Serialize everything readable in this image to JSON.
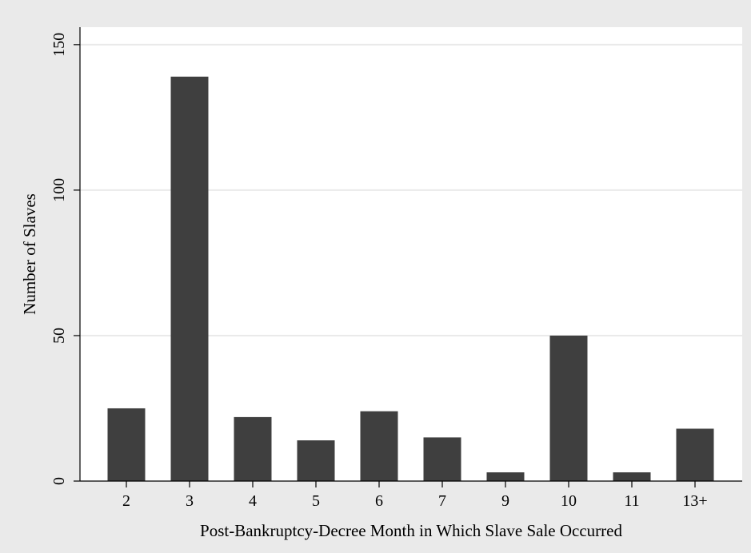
{
  "chart_data": {
    "type": "bar",
    "title": "",
    "xlabel": "Post-Bankruptcy-Decree Month in Which Slave Sale Occurred",
    "ylabel": "Number of Slaves",
    "categories": [
      "2",
      "3",
      "4",
      "5",
      "6",
      "7",
      "9",
      "10",
      "11",
      "13+"
    ],
    "values": [
      25,
      139,
      22,
      14,
      24,
      15,
      3,
      50,
      3,
      18
    ],
    "ylim": [
      0,
      156
    ],
    "yticks": [
      0,
      50,
      100,
      150
    ],
    "ytick_labels": [
      "0",
      "50",
      "100",
      "150"
    ],
    "grid": true,
    "legend": "none",
    "colors": {
      "bar": "#3f3f3f",
      "outer_background": "#eaeaea",
      "plot_background": "#ffffff",
      "gridline": "#eaeaea",
      "axis": "#000000"
    }
  }
}
